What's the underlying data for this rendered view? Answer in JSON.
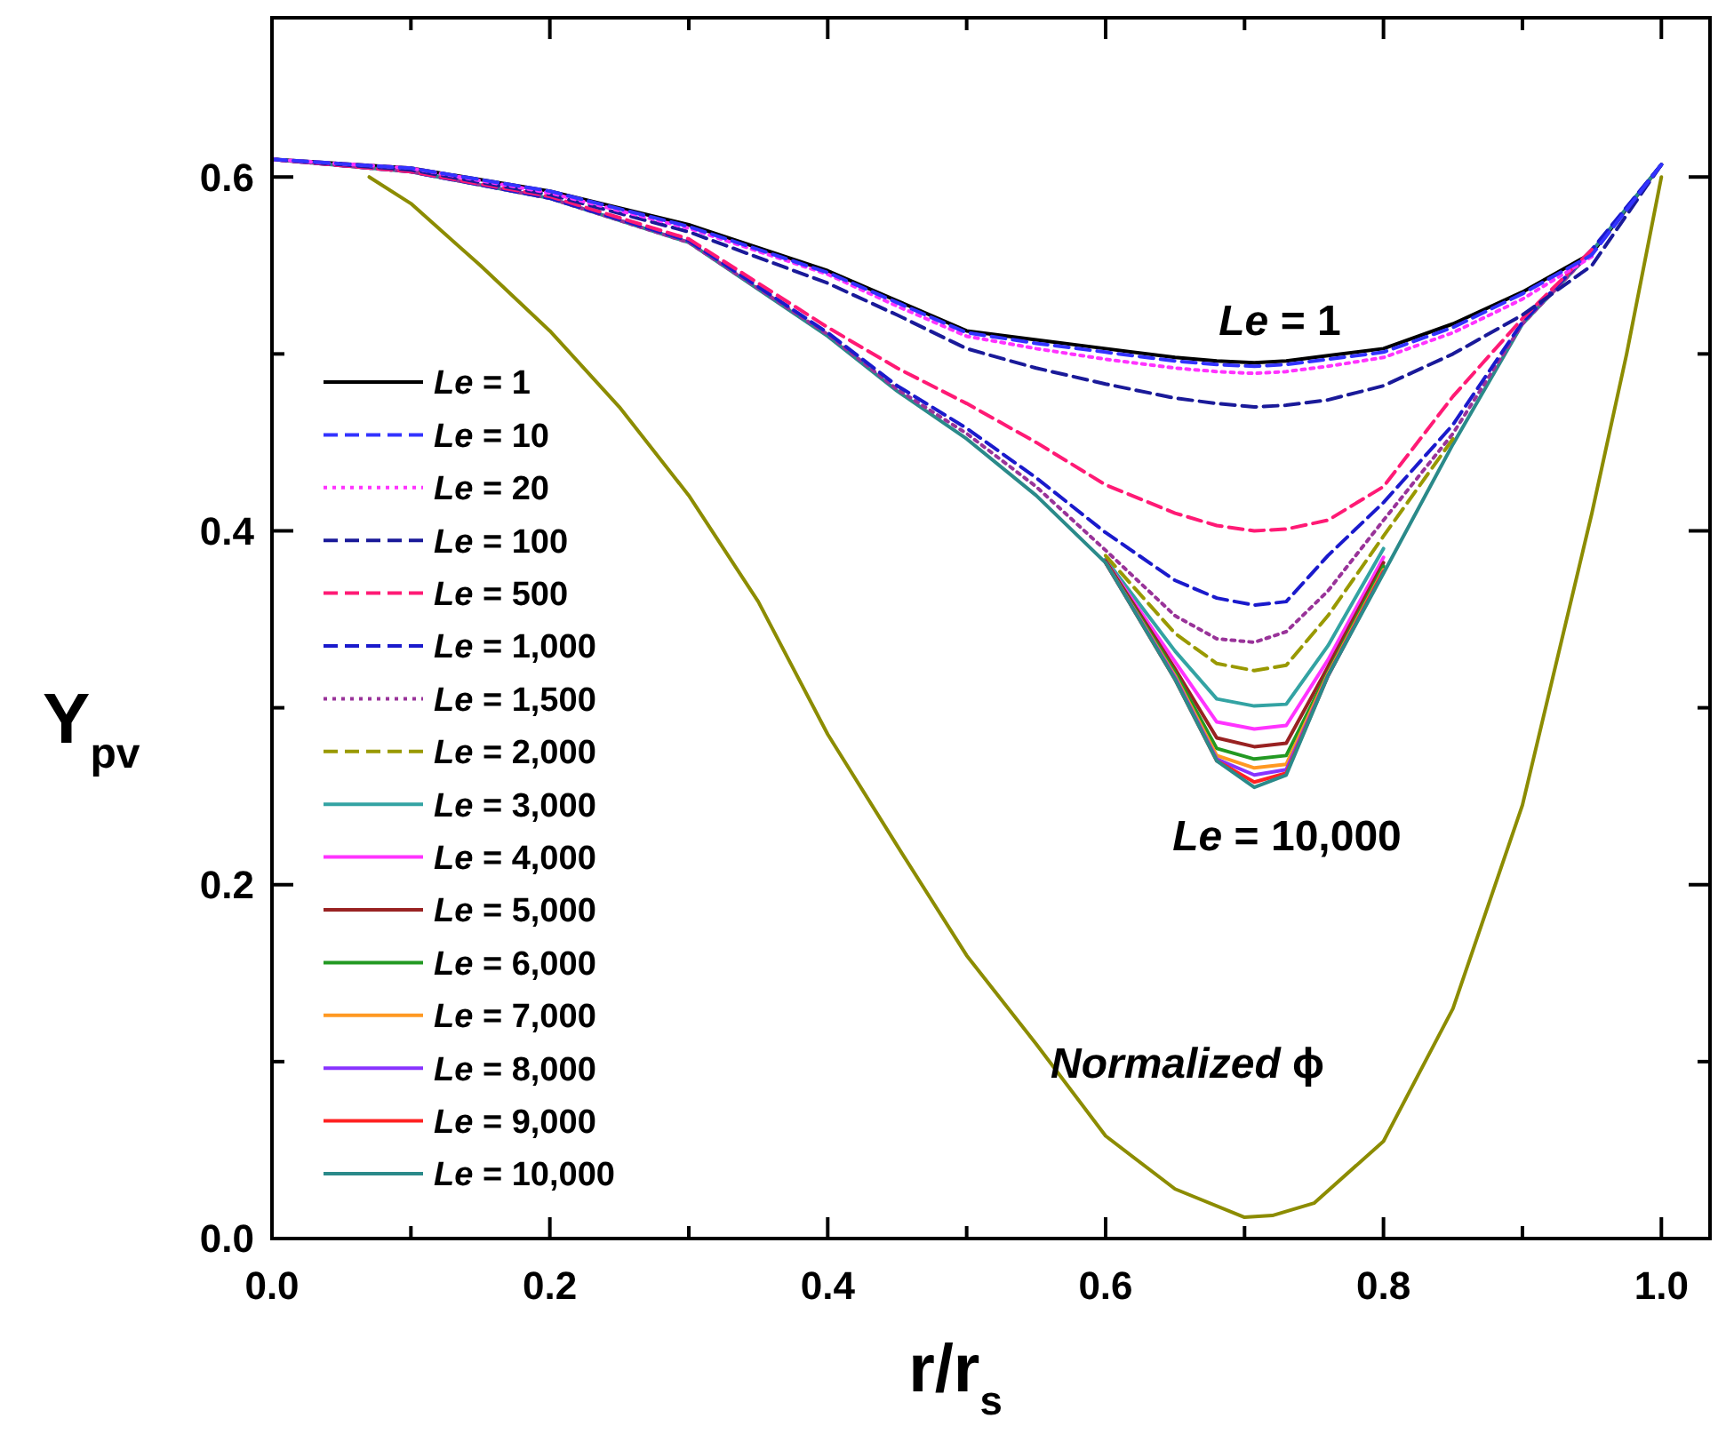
{
  "chart_data": {
    "type": "line",
    "xlabel": "r/r$_{s}$",
    "ylabel": "Y$_{pv}$",
    "x": [
      0,
      0.1,
      0.2,
      0.3,
      0.4,
      0.45,
      0.5,
      0.55,
      0.6,
      0.65,
      0.68,
      0.707,
      0.73,
      0.76,
      0.8,
      0.85,
      0.9,
      0.95,
      1.0
    ],
    "xlim": [
      0,
      1.035
    ],
    "ylim": [
      0,
      0.69
    ],
    "xticks": [
      {
        "value": 0,
        "label": "0.0"
      },
      {
        "value": 0.1,
        "label": null
      },
      0.2,
      {
        "value": 0.3,
        "label": null
      },
      0.4,
      {
        "value": 0.5,
        "label": null
      },
      0.6,
      {
        "value": 0.7,
        "label": null
      },
      0.8,
      {
        "value": 0.9,
        "label": null
      },
      {
        "value": 1,
        "label": "1.0"
      }
    ],
    "yticks": [
      {
        "value": 0,
        "label": "0.0"
      },
      {
        "value": 0.1,
        "label": null
      },
      0.2,
      {
        "value": 0.3,
        "label": null
      },
      0.4,
      {
        "value": 0.5,
        "label": null
      },
      0.6
    ],
    "grid": false,
    "legend": "left",
    "marker": "none",
    "series": [
      {
        "name": "Le = 1",
        "color": "#000000",
        "line_style": "solid",
        "values": [
          0.61,
          0.605,
          0.592,
          0.573,
          0.547,
          0.53,
          0.513,
          0.508,
          0.503,
          0.498,
          0.496,
          0.495,
          0.496,
          0.499,
          0.503,
          0.517,
          0.535,
          0.557,
          0.607
        ]
      },
      {
        "name": "Le = 10",
        "color": "#3333ff",
        "line_style": "dashed",
        "values": [
          0.61,
          0.605,
          0.592,
          0.572,
          0.546,
          0.529,
          0.512,
          0.506,
          0.501,
          0.496,
          0.494,
          0.493,
          0.494,
          0.497,
          0.501,
          0.515,
          0.534,
          0.556,
          0.607
        ]
      },
      {
        "name": "Le = 20",
        "color": "#ff33ff",
        "line_style": "dotted",
        "values": [
          0.61,
          0.605,
          0.591,
          0.571,
          0.545,
          0.527,
          0.51,
          0.503,
          0.497,
          0.492,
          0.49,
          0.489,
          0.49,
          0.493,
          0.498,
          0.512,
          0.531,
          0.555,
          null
        ]
      },
      {
        "name": "Le = 100",
        "color": "#1a1a99",
        "line_style": "dashed",
        "values": [
          0.61,
          0.604,
          0.59,
          0.569,
          0.54,
          0.522,
          0.503,
          0.492,
          0.483,
          0.475,
          0.472,
          0.47,
          0.471,
          0.474,
          0.482,
          0.5,
          0.522,
          0.55,
          0.607
        ]
      },
      {
        "name": "Le = 500",
        "color": "#ff1a75",
        "line_style": "dashed",
        "values": [
          0.61,
          0.603,
          0.589,
          0.565,
          0.515,
          0.492,
          0.472,
          0.45,
          0.426,
          0.41,
          0.403,
          0.4,
          0.401,
          0.406,
          0.425,
          0.476,
          0.52,
          0.559,
          null
        ]
      },
      {
        "name": "Le = 1,000",
        "color": "#1a1acc",
        "line_style": "dashed",
        "values": [
          0.61,
          0.603,
          0.588,
          0.564,
          0.512,
          0.482,
          0.458,
          0.43,
          0.399,
          0.372,
          0.362,
          0.358,
          0.36,
          0.386,
          0.416,
          0.46,
          0.518,
          0.559,
          0.607
        ]
      },
      {
        "name": "Le = 1,500",
        "color": "#993399",
        "line_style": "dotted",
        "values": [
          0.61,
          0.603,
          0.588,
          0.563,
          0.511,
          0.48,
          0.455,
          0.425,
          0.389,
          0.352,
          0.339,
          0.337,
          0.343,
          0.366,
          0.406,
          0.455,
          0.517,
          0.558,
          null
        ]
      },
      {
        "name": "Le = 2,000",
        "color": "#999900",
        "line_style": "dashed",
        "values": [
          null,
          null,
          null,
          null,
          null,
          null,
          null,
          null,
          0.386,
          0.342,
          0.325,
          0.321,
          0.324,
          0.352,
          0.397,
          0.452,
          null,
          null,
          null
        ]
      },
      {
        "name": "Le = 3,000",
        "color": "#33a3a3",
        "line_style": "solid",
        "values": [
          null,
          null,
          null,
          null,
          null,
          null,
          null,
          null,
          0.384,
          0.332,
          0.305,
          0.301,
          0.302,
          0.335,
          0.39,
          null,
          null,
          null,
          null
        ]
      },
      {
        "name": "Le = 4,000",
        "color": "#ff33ff",
        "line_style": "solid",
        "values": [
          null,
          null,
          null,
          null,
          null,
          null,
          null,
          null,
          0.383,
          0.326,
          0.292,
          0.288,
          0.29,
          0.327,
          0.385,
          null,
          null,
          null,
          null
        ]
      },
      {
        "name": "Le = 5,000",
        "color": "#992222",
        "line_style": "solid",
        "values": [
          null,
          null,
          null,
          null,
          null,
          null,
          null,
          null,
          0.383,
          0.322,
          0.283,
          0.278,
          0.28,
          0.323,
          0.382,
          null,
          null,
          null,
          null
        ]
      },
      {
        "name": "Le = 6,000",
        "color": "#229922",
        "line_style": "solid",
        "values": [
          null,
          null,
          null,
          null,
          null,
          null,
          null,
          null,
          0.382,
          0.32,
          0.277,
          0.271,
          0.273,
          0.32,
          0.38,
          null,
          null,
          null,
          null
        ]
      },
      {
        "name": "Le = 7,000",
        "color": "#ff9922",
        "line_style": "solid",
        "values": [
          null,
          null,
          null,
          null,
          null,
          null,
          null,
          null,
          0.382,
          0.318,
          0.273,
          0.266,
          0.268,
          0.319,
          0.378,
          null,
          null,
          null,
          null
        ]
      },
      {
        "name": "Le = 8,000",
        "color": "#8833ff",
        "line_style": "solid",
        "values": [
          null,
          null,
          null,
          null,
          null,
          null,
          null,
          null,
          0.382,
          0.317,
          0.271,
          0.262,
          0.265,
          0.318,
          0.377,
          null,
          null,
          null,
          null
        ]
      },
      {
        "name": "Le = 9,000",
        "color": "#ff2222",
        "line_style": "solid",
        "values": [
          null,
          null,
          null,
          null,
          null,
          null,
          null,
          null,
          0.382,
          0.316,
          0.27,
          0.258,
          0.263,
          0.318,
          0.377,
          null,
          null,
          null,
          null
        ]
      },
      {
        "name": "Le = 10,000",
        "color": "#2a8a8a",
        "line_style": "solid",
        "values": [
          0.61,
          0.603,
          0.588,
          0.563,
          0.51,
          0.479,
          0.452,
          0.42,
          0.382,
          0.316,
          0.27,
          0.255,
          0.262,
          0.318,
          0.376,
          0.449,
          0.517,
          0.558,
          0.607
        ]
      },
      {
        "color": "#8c8c00",
        "line_style": "solid",
        "x": [
          0.07,
          0.1,
          0.15,
          0.2,
          0.25,
          0.3,
          0.35,
          0.4,
          0.45,
          0.5,
          0.55,
          0.6,
          0.65,
          0.7,
          0.72,
          0.75,
          0.8,
          0.85,
          0.9,
          0.95,
          0.975,
          1.0
        ],
        "values": [
          0.6,
          0.585,
          0.55,
          0.513,
          0.47,
          0.42,
          0.36,
          0.285,
          0.222,
          0.16,
          0.11,
          0.058,
          0.028,
          0.012,
          0.013,
          0.02,
          0.055,
          0.13,
          0.245,
          0.41,
          0.5,
          0.6
        ]
      }
    ],
    "annotations": [
      "Le = 1",
      "Le = 10,000",
      "Normalized ϕ"
    ]
  }
}
